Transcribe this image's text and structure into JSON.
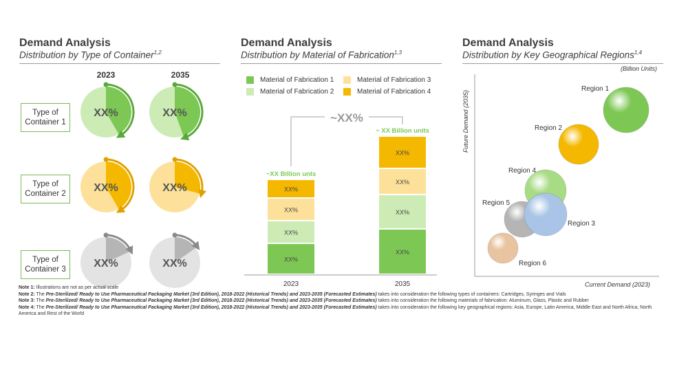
{
  "panels": {
    "left": {
      "title": "Demand Analysis",
      "subtitle": "Distribution by Type of Container",
      "sup": "1,2"
    },
    "middle": {
      "title": "Demand Analysis",
      "subtitle": "Distribution by Material of Fabrication",
      "sup": "1,3"
    },
    "right": {
      "title": "Demand Analysis",
      "subtitle": "Distribution by Key Geographical Regions",
      "sup": "1,4"
    }
  },
  "containers": {
    "years": [
      "2023",
      "2035"
    ],
    "rows": [
      {
        "label": "Type of\nContainer 1",
        "value_label": "XX%",
        "color": "#7dc855",
        "light": "#cdebb5",
        "arrow": "#5aa83a"
      },
      {
        "label": "Type of\nContainer 2",
        "value_label": "XX%",
        "color": "#f5b800",
        "light": "#fde19a",
        "arrow": "#e0a000"
      },
      {
        "label": "Type of\nContainer 3",
        "value_label": "XX%",
        "color": "#b5b5b5",
        "light": "#e3e3e3",
        "arrow": "#8a8a8a"
      }
    ]
  },
  "chart_data": [
    {
      "type": "bar",
      "stacked": true,
      "categories": [
        "2023",
        "2035"
      ],
      "series": [
        {
          "name": "Material of Fabrication 1",
          "color": "#7dc855",
          "labels": [
            "XX%",
            "XX%"
          ]
        },
        {
          "name": "Material of Fabrication 2",
          "color": "#cdebb5",
          "labels": [
            "XX%",
            "XX%"
          ]
        },
        {
          "name": "Material of Fabrication 3",
          "color": "#fde19a",
          "labels": [
            "XX%",
            "XX%"
          ]
        },
        {
          "name": "Material of Fabrication 4",
          "color": "#f5b800",
          "labels": [
            "XX%",
            "XX%"
          ]
        }
      ],
      "totals": [
        "~XX Billion unts",
        "~ XX Billion units"
      ],
      "growth_label": "~XX%"
    },
    {
      "type": "scatter",
      "xlabel": "Current Demand  (2023)",
      "ylabel": "Future Demand  (2035)",
      "units": "(Billion Units)",
      "points": [
        {
          "name": "Region  1",
          "color": "#7dc855"
        },
        {
          "name": "Region  2",
          "color": "#f5b800"
        },
        {
          "name": "Region  4",
          "color": "#a8dc84"
        },
        {
          "name": "Region  5",
          "color": "#b5b5b5"
        },
        {
          "name": "Region  3",
          "color": "#a9c4e6"
        },
        {
          "name": "Region  6",
          "color": "#e8c4a0"
        }
      ]
    }
  ],
  "notes": [
    {
      "head": "Note 1:",
      "text": " Illustrations are not as per actual scale"
    },
    {
      "head": "Note 2:",
      "text": " The ",
      "bold": "Pre-Sterilized/ Ready to Use Pharmaceutical Packaging Market (3rd Edition), 2018-2022 (Historical Trends) and 2023-2035 (Forecasted Estimates)",
      "tail": " takes into consideration the  following types of containers: Cartridges, Syringes and Vials"
    },
    {
      "head": "Note 3:",
      "text": " The ",
      "bold": "Pre-Sterilized/ Ready to Use Pharmaceutical Packaging Market (3rd Edition), 2018-2022 (Historical Trends) and 2023-2035 (Forecasted Estimates)",
      "tail": " takes into consideration the  following materials of fabrication: Aluminum, Glass, Plastic and Rubber"
    },
    {
      "head": "Note 4:",
      "text": " The ",
      "bold": "Pre-Sterilized/ Ready to Use Pharmaceutical Packaging Market (3rd Edition), 2018-2022 (Historical Trends) and 2023-2035 (Forecasted Estimates)",
      "tail": " takes into consideration the  following key geographical regions: Asia, Europe, Latin America, Middle  East and North  Africa, North America and Rest of the World"
    }
  ]
}
